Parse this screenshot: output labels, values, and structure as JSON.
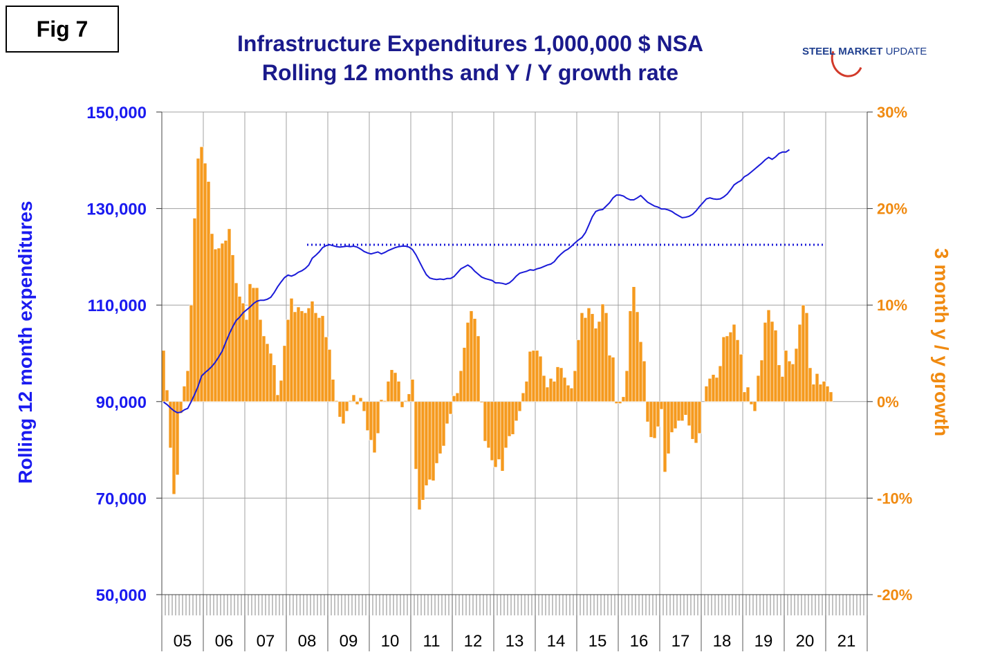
{
  "figure_label": "Fig 7",
  "title_line1": "Infrastructure Expenditures 1,000,000 $ NSA",
  "title_line2": "Rolling 12 months and Y / Y growth rate",
  "logo": {
    "bold": "STEEL MARKET",
    "rest": " UPDATE"
  },
  "colors": {
    "line": "#1a1ad8",
    "bars": "#f59a1e",
    "bar_edge": "#ffffff",
    "left_axis": "#1a1af0",
    "right_axis": "#f08a10",
    "title": "#1a1a8c",
    "grid": "#a0a0a0"
  },
  "chart_data": {
    "type": "bar+line",
    "title": "Infrastructure Expenditures 1,000,000 $ NSA — Rolling 12 months and Y / Y growth rate",
    "ylabel_left": "Rolling 12 month expenditures",
    "ylabel_right": "3 month y / y growth",
    "ylim_left": [
      50000,
      150000
    ],
    "ylim_right": [
      -20,
      30
    ],
    "yticks_left": [
      "50,000",
      "70,000",
      "90,000",
      "110,000",
      "130,000",
      "150,000"
    ],
    "yticks_right": [
      "-20%",
      "-10%",
      "0%",
      "10%",
      "20%",
      "30%"
    ],
    "xticks": [
      "05",
      "06",
      "07",
      "08",
      "09",
      "10",
      "11",
      "12",
      "13",
      "14",
      "15",
      "16",
      "17",
      "18",
      "19",
      "20",
      "21"
    ],
    "x_start": "2005-01",
    "x_end": "2021-12",
    "grid": "horizontal and yearly vertical",
    "reference_line": {
      "value": 122500,
      "from": "2008-07",
      "to": "2021-01",
      "style": "dotted"
    },
    "series": [
      {
        "name": "Rolling 12 month expenditures",
        "axis": "left",
        "type": "line",
        "values": [
          89900,
          89400,
          88700,
          88100,
          87700,
          87800,
          88300,
          88600,
          90000,
          91500,
          93200,
          95300,
          96000,
          96600,
          97300,
          98200,
          99300,
          100500,
          102300,
          104000,
          105500,
          106800,
          107500,
          108400,
          109000,
          109600,
          110300,
          110800,
          111000,
          111000,
          111200,
          111600,
          112600,
          113800,
          114800,
          115700,
          116200,
          116000,
          116300,
          116800,
          117100,
          117600,
          118300,
          119700,
          120300,
          121000,
          121900,
          122300,
          122500,
          122300,
          122100,
          122000,
          122100,
          122200,
          122100,
          122200,
          122000,
          121600,
          121100,
          120800,
          120600,
          120800,
          121000,
          120600,
          120900,
          121300,
          121600,
          121900,
          122100,
          122200,
          122200,
          122000,
          121500,
          120400,
          119000,
          117600,
          116300,
          115600,
          115400,
          115300,
          115400,
          115300,
          115500,
          115500,
          115900,
          116700,
          117500,
          117900,
          118300,
          117800,
          117000,
          116400,
          115800,
          115500,
          115300,
          115100,
          114600,
          114600,
          114500,
          114300,
          114600,
          115200,
          116000,
          116600,
          116800,
          117000,
          117300,
          117200,
          117500,
          117700,
          118000,
          118300,
          118500,
          119000,
          119900,
          120600,
          121200,
          121600,
          122200,
          122900,
          123500,
          124000,
          125000,
          126600,
          128300,
          129400,
          129700,
          129800,
          130500,
          131200,
          132200,
          132800,
          132800,
          132600,
          132100,
          131800,
          131800,
          132200,
          132700,
          132000,
          131300,
          130900,
          130500,
          130300,
          129900,
          129900,
          129700,
          129400,
          128900,
          128500,
          128100,
          128200,
          128400,
          128800,
          129500,
          130400,
          131200,
          132000,
          132200,
          132000,
          131900,
          132000,
          132400,
          133000,
          133900,
          134900,
          135400,
          135800,
          136600,
          137000,
          137600,
          138200,
          138800,
          139400,
          140100,
          140600,
          140200,
          140700,
          141400,
          141700,
          141700,
          142200
        ]
      },
      {
        "name": "3 month y / y growth",
        "axis": "right",
        "type": "bar",
        "values": [
          5.3,
          1.2,
          -4.8,
          -9.6,
          -7.6,
          -1.2,
          1.6,
          3.2,
          10.0,
          19.0,
          25.2,
          26.4,
          24.7,
          22.8,
          17.4,
          15.8,
          15.9,
          16.4,
          16.7,
          17.9,
          15.2,
          12.3,
          10.9,
          10.2,
          8.5,
          12.2,
          11.8,
          11.8,
          8.5,
          6.8,
          6.0,
          5.0,
          3.8,
          0.7,
          2.2,
          5.8,
          8.5,
          10.7,
          9.3,
          9.8,
          9.4,
          9.2,
          9.7,
          10.4,
          9.2,
          8.7,
          8.9,
          6.7,
          5.4,
          2.3,
          0.1,
          -1.6,
          -2.3,
          -1.0,
          0.1,
          0.7,
          -0.3,
          0.4,
          -1.0,
          -3.0,
          -4.0,
          -5.3,
          -3.3,
          0.2,
          0.1,
          2.1,
          3.3,
          3.0,
          2.1,
          -0.6,
          0.1,
          0.8,
          2.3,
          -7.0,
          -11.2,
          -10.2,
          -8.7,
          -8.1,
          -8.2,
          -6.4,
          -5.4,
          -4.6,
          -2.3,
          -1.3,
          0.6,
          0.9,
          3.2,
          5.6,
          8.2,
          9.4,
          8.6,
          6.8,
          -0.1,
          -4.1,
          -4.8,
          -6.1,
          -6.8,
          -6.0,
          -7.2,
          -4.8,
          -3.6,
          -3.4,
          -2.0,
          -1.0,
          0.9,
          2.1,
          5.2,
          5.3,
          5.3,
          4.7,
          2.7,
          1.5,
          2.4,
          2.1,
          3.6,
          3.5,
          2.5,
          1.7,
          1.4,
          3.2,
          6.4,
          9.2,
          8.7,
          9.7,
          9.1,
          7.6,
          8.3,
          10.1,
          9.2,
          4.8,
          4.6,
          -0.2,
          -0.2,
          0.5,
          3.2,
          9.4,
          11.9,
          9.3,
          6.2,
          4.2,
          -2.1,
          -3.7,
          -3.8,
          -2.6,
          -0.8,
          -7.3,
          -5.4,
          -3.2,
          -2.8,
          -2.0,
          -2.0,
          -1.4,
          -2.5,
          -3.9,
          -4.3,
          -3.3,
          0.0,
          1.6,
          2.4,
          2.8,
          2.5,
          3.7,
          6.7,
          6.8,
          7.2,
          8.0,
          6.4,
          4.9,
          1.0,
          1.5,
          -0.3,
          -1.0,
          2.7,
          4.3,
          8.2,
          9.5,
          8.3,
          7.4,
          3.8,
          2.6,
          5.3,
          4.2,
          3.9,
          5.5,
          8.0,
          10.0,
          9.2,
          3.5,
          1.8,
          2.9,
          1.8,
          2.1,
          1.6,
          1.0
        ]
      }
    ]
  }
}
